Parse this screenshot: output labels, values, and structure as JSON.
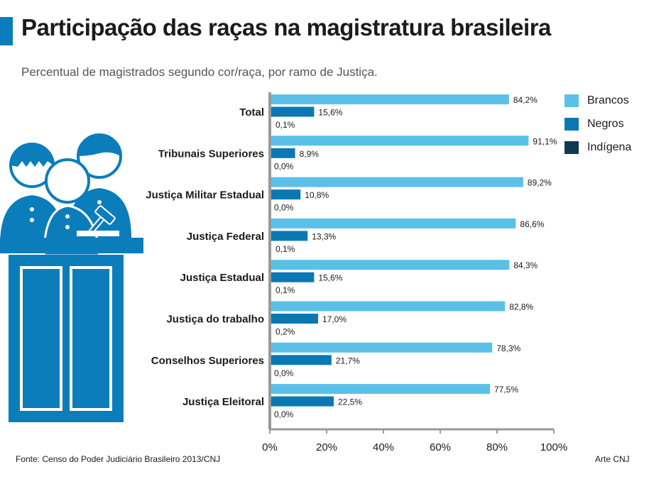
{
  "title": "Participação das raças na magistratura brasileira",
  "subtitle": "Percentual de magistrados segundo cor/raça, por ramo de Justiça.",
  "source": "Fonte: Censo do Poder Judiciário Brasileiro 2013/CNJ",
  "credit": "Arte CNJ",
  "colors": {
    "brancos": "#5bc0e8",
    "negros": "#0a78b3",
    "indigena": "#0d3a52",
    "illustration": "#0b7dbb",
    "axis": "#999999"
  },
  "legend": [
    {
      "label": "Brancos",
      "color": "#5bc0e8"
    },
    {
      "label": "Negros",
      "color": "#0a78b3"
    },
    {
      "label": "Indígena",
      "color": "#0d3a52"
    }
  ],
  "chart_data": {
    "type": "bar",
    "orientation": "horizontal",
    "title": "Participação das raças na magistratura brasileira",
    "xlim": [
      0,
      100
    ],
    "xticks": [
      "0%",
      "20%",
      "40%",
      "60%",
      "80%",
      "100%"
    ],
    "legend_position": "top-right",
    "categories": [
      "Total",
      "Tribunais Superiores",
      "Justiça Militar Estadual",
      "Justiça Federal",
      "Justiça Estadual",
      "Justiça do trabalho",
      "Conselhos Superiores",
      "Justiça Eleitoral"
    ],
    "series": [
      {
        "name": "Brancos",
        "values": [
          84.2,
          91.1,
          89.2,
          86.6,
          84.3,
          82.8,
          78.3,
          77.5
        ],
        "labels": [
          "84,2%",
          "91,1%",
          "89,2%",
          "86,6%",
          "84,3%",
          "82,8%",
          "78,3%",
          "77,5%"
        ]
      },
      {
        "name": "Negros",
        "values": [
          15.6,
          8.9,
          10.8,
          13.3,
          15.6,
          17.0,
          21.7,
          22.5
        ],
        "labels": [
          "15,6%",
          "8,9%",
          "10,8%",
          "13,3%",
          "15,6%",
          "17,0%",
          "21,7%",
          "22,5%"
        ]
      },
      {
        "name": "Indígena",
        "values": [
          0.1,
          0.0,
          0.0,
          0.1,
          0.1,
          0.2,
          0.0,
          0.0
        ],
        "labels": [
          "0,1%",
          "0,0%",
          "0,0%",
          "0,1%",
          "0,1%",
          "0,2%",
          "0,0%",
          "0,0%"
        ]
      }
    ]
  }
}
